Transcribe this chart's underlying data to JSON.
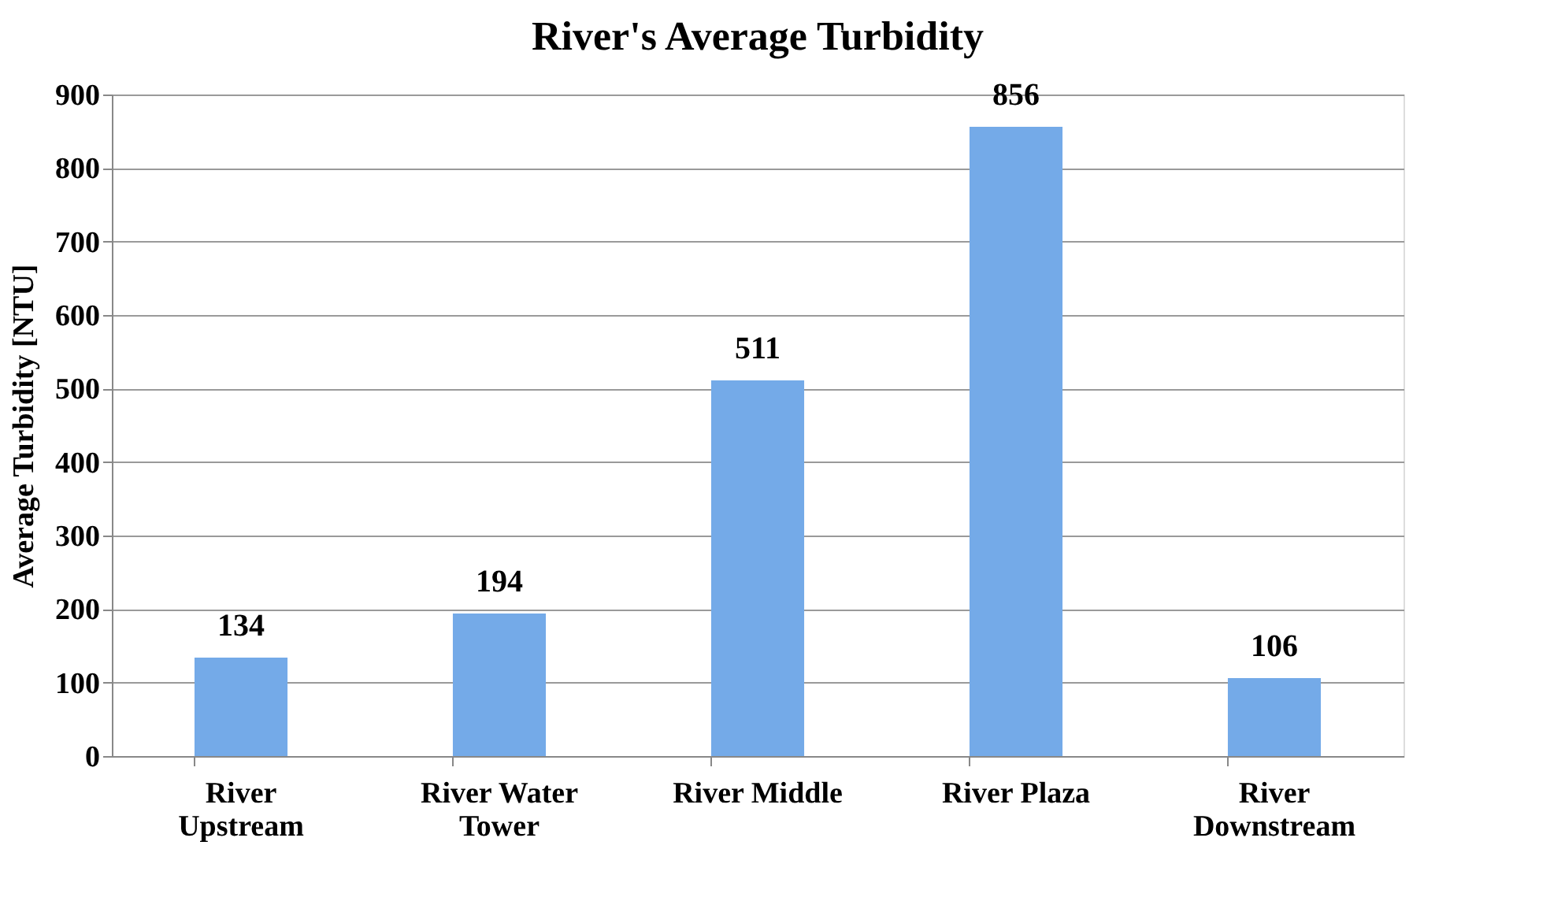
{
  "chart_data": {
    "type": "bar",
    "title": "River's Average Turbidity",
    "ylabel": "Average Turbidity [NTU]",
    "categories": [
      "River Upstream",
      "River Water Tower",
      "River Middle",
      "River Plaza",
      "River Downstream"
    ],
    "values": [
      134,
      194,
      511,
      856,
      106
    ],
    "color": "#74aae8",
    "ylim": [
      0,
      900
    ],
    "yticks": [
      0,
      100,
      200,
      300,
      400,
      500,
      600,
      700,
      800,
      900
    ],
    "grid": "y",
    "data_labels": true
  }
}
